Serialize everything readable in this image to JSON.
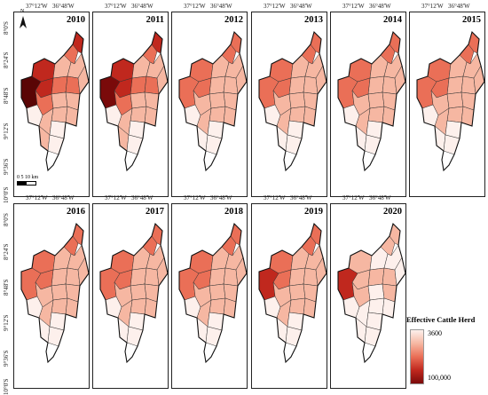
{
  "map_data": {
    "years": [
      "2010",
      "2011",
      "2012",
      "2013",
      "2014",
      "2015",
      "2016",
      "2017",
      "2018",
      "2019",
      "2020"
    ],
    "longitude_labels": [
      "37°12'W",
      "36°48'W"
    ],
    "latitude_labels": [
      "8°0'S",
      "8°24'S",
      "8°48'S",
      "9°12'S",
      "9°36'S",
      "10°0'S"
    ],
    "legend": {
      "title": "Effective Cattle Herd",
      "min_label": "3600",
      "max_label": "100,000"
    },
    "scale_bar": {
      "label": "0  5 10 km"
    },
    "north_arrow": {
      "label": "N"
    },
    "colors": {
      "low": "#fdf0ec",
      "mid_low": "#f6b7a2",
      "mid": "#ea6f57",
      "high": "#c0281e",
      "max": "#7a0a0a"
    },
    "region_levels_by_year": {
      "2010": [
        3,
        1,
        2,
        3,
        1,
        2,
        3,
        5,
        2,
        1,
        2,
        1,
        1,
        1,
        1,
        0,
        1,
        0,
        1,
        0
      ],
      "2011": [
        3,
        1,
        2,
        3,
        1,
        2,
        3,
        4,
        2,
        1,
        2,
        1,
        1,
        1,
        1,
        0,
        1,
        0,
        1,
        0
      ],
      "2012": [
        2,
        1,
        2,
        2,
        1,
        1,
        2,
        2,
        1,
        1,
        1,
        1,
        1,
        1,
        1,
        0,
        1,
        0,
        0,
        0
      ],
      "2013": [
        2,
        1,
        2,
        2,
        1,
        1,
        2,
        2,
        1,
        1,
        1,
        1,
        1,
        1,
        1,
        0,
        1,
        0,
        0,
        0
      ],
      "2014": [
        2,
        1,
        2,
        2,
        1,
        1,
        2,
        2,
        1,
        1,
        1,
        1,
        1,
        1,
        1,
        0,
        1,
        0,
        0,
        0
      ],
      "2015": [
        2,
        1,
        2,
        2,
        1,
        1,
        2,
        2,
        1,
        1,
        1,
        1,
        1,
        1,
        1,
        0,
        1,
        0,
        0,
        0
      ],
      "2016": [
        2,
        1,
        2,
        2,
        1,
        1,
        2,
        2,
        1,
        1,
        1,
        1,
        1,
        1,
        1,
        0,
        1,
        0,
        0,
        0
      ],
      "2017": [
        2,
        1,
        2,
        2,
        1,
        1,
        2,
        2,
        1,
        1,
        1,
        1,
        1,
        1,
        1,
        0,
        1,
        0,
        0,
        0
      ],
      "2018": [
        2,
        1,
        2,
        2,
        1,
        1,
        2,
        2,
        1,
        1,
        1,
        1,
        1,
        1,
        1,
        0,
        1,
        0,
        0,
        0
      ],
      "2019": [
        2,
        1,
        2,
        2,
        1,
        1,
        2,
        3,
        1,
        1,
        1,
        1,
        1,
        1,
        1,
        0,
        1,
        0,
        0,
        0
      ],
      "2020": [
        1,
        0,
        1,
        1,
        0,
        1,
        1,
        3,
        1,
        0,
        1,
        0,
        1,
        0,
        0,
        0,
        0,
        0,
        0,
        0
      ]
    }
  }
}
